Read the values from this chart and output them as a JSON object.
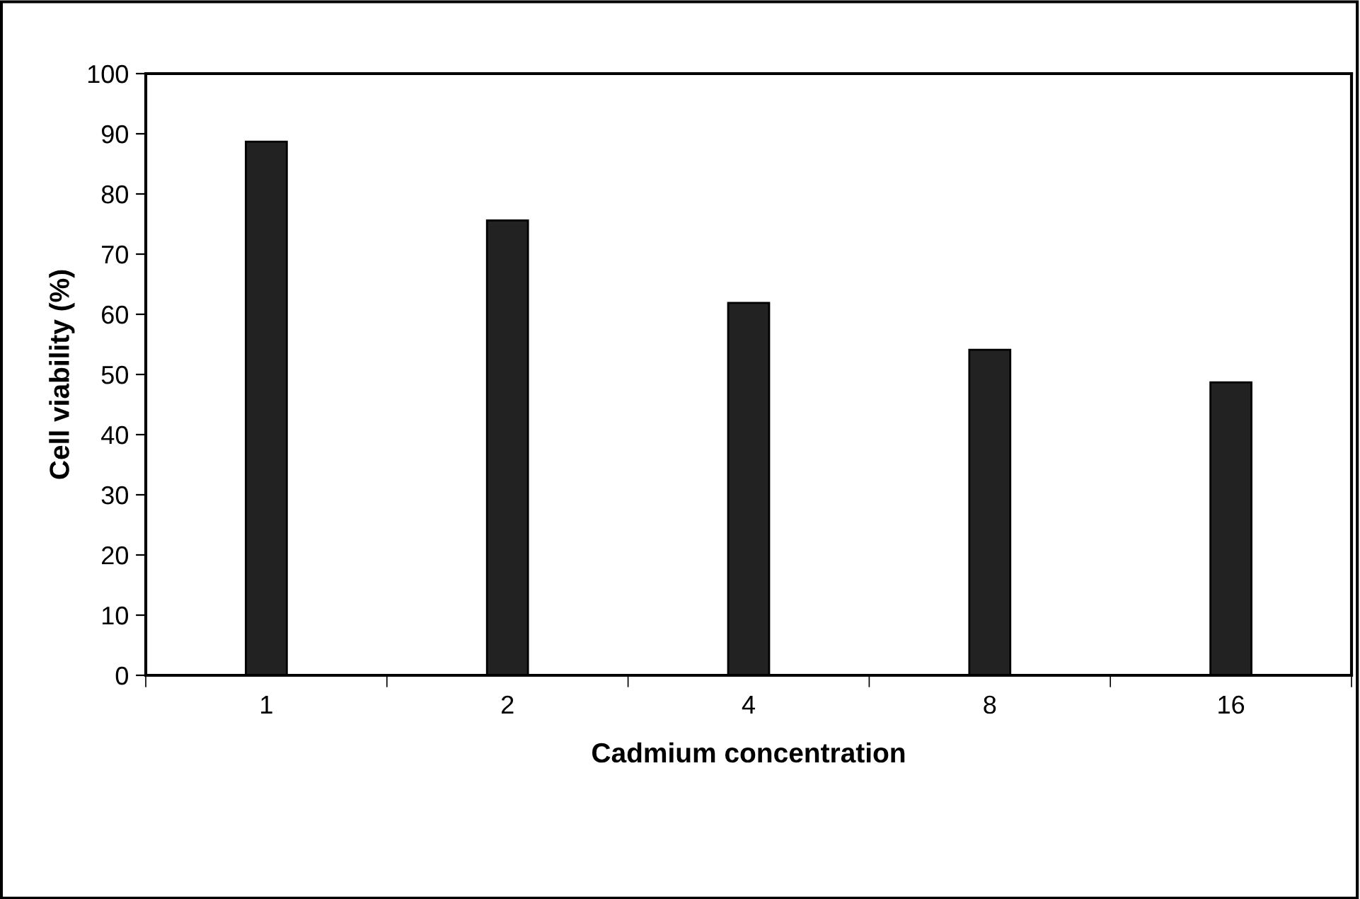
{
  "chart_data": {
    "type": "bar",
    "xlabel": "Cadmium concentration",
    "ylabel": "Cell viability (%)",
    "categories": [
      "1",
      "2",
      "4",
      "8",
      "16"
    ],
    "values": [
      88.7,
      75.6,
      61.9,
      54.1,
      48.7
    ],
    "color": "#222222",
    "ylim": [
      0,
      100
    ],
    "yticks": [
      0,
      10,
      20,
      30,
      40,
      50,
      60,
      70,
      80,
      90,
      100
    ],
    "grid": false,
    "legend": false
  }
}
